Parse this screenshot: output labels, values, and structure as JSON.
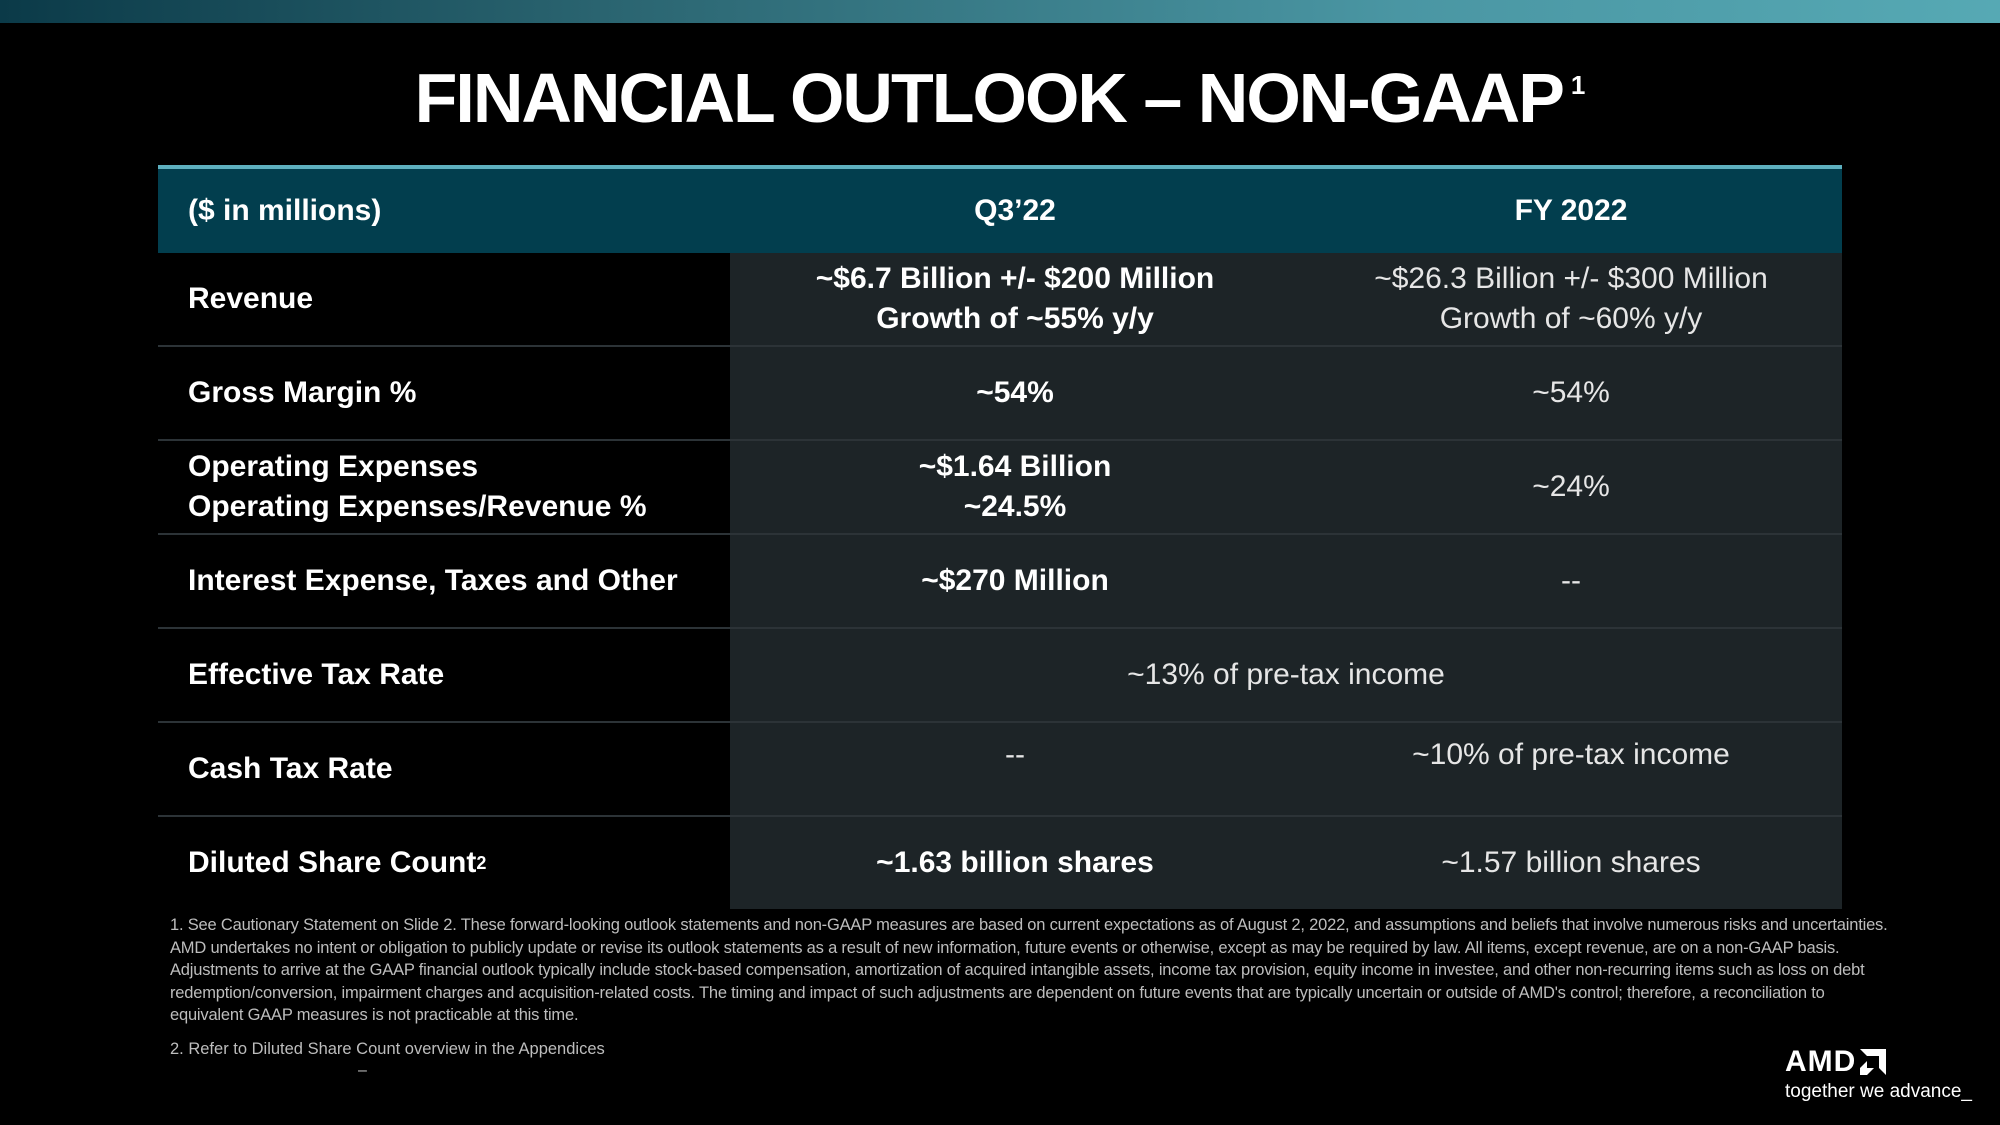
{
  "title": {
    "text": "FINANCIAL OUTLOOK – NON-GAAP",
    "sup": "1"
  },
  "table": {
    "headers": [
      "($ in millions)",
      "Q3’22",
      "FY 2022"
    ],
    "rows": [
      {
        "label": "Revenue",
        "q3": [
          "~$6.7 Billion +/- $200 Million",
          "Growth of ~55% y/y"
        ],
        "fy": [
          "~$26.3 Billion +/- $300 Million",
          "Growth of ~60% y/y"
        ]
      },
      {
        "label": "Gross Margin %",
        "q3": [
          "~54%"
        ],
        "fy": [
          "~54%"
        ]
      },
      {
        "label": [
          "Operating Expenses",
          "Operating Expenses/Revenue %"
        ],
        "q3": [
          "~$1.64 Billion",
          "~24.5%"
        ],
        "fy": [
          "~24%"
        ]
      },
      {
        "label": "Interest Expense, Taxes and Other",
        "q3": [
          "~$270 Million"
        ],
        "fy": [
          "--"
        ]
      },
      {
        "label": "Effective Tax Rate",
        "combined": "~13% of pre-tax income"
      },
      {
        "label": "Cash Tax Rate",
        "q3": [
          "--"
        ],
        "fy": [
          "~10% of pre-tax income"
        ]
      },
      {
        "label": "Diluted Share Count",
        "label_sup": "2",
        "q3": [
          "~1.63 billion shares"
        ],
        "fy": [
          "~1.57 billion shares"
        ]
      }
    ]
  },
  "footnotes": {
    "note1": "1.  See Cautionary Statement on Slide 2. These forward-looking outlook statements and non-GAAP measures are based on current expectations as of August 2, 2022, and assumptions and beliefs that involve numerous risks and uncertainties. AMD undertakes no intent or obligation to publicly update or revise its outlook statements as a result of new information, future events or otherwise, except as may be required by law. All items, except revenue, are on a non-GAAP basis. Adjustments to arrive at the GAAP financial outlook typically include stock-based compensation, amortization of acquired intangible assets, income tax provision, equity income in investee, and other non-recurring items such as loss on debt redemption/conversion, impairment charges and acquisition-related costs. The timing and impact of such adjustments are dependent on future events that are typically uncertain or outside of AMD's control; therefore, a reconciliation to equivalent GAAP measures is not practicable at this time.",
    "note2": "2.  Refer to Diluted Share Count overview in the Appendices",
    "dash": "–"
  },
  "logo": {
    "brand": "AMD",
    "tagline": "together we advance_"
  }
}
